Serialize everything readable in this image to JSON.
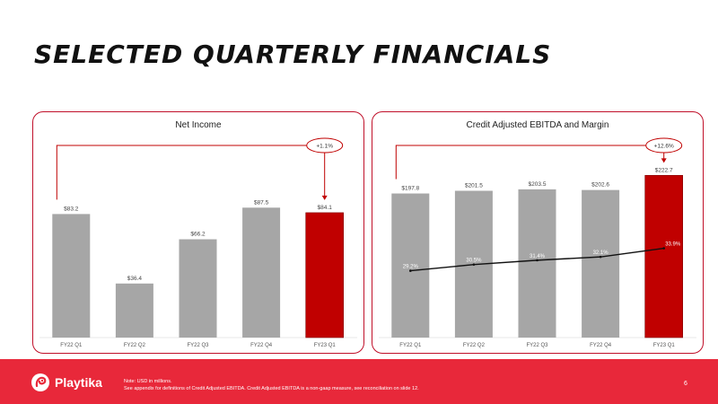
{
  "page": {
    "title": "SELECTED QUARTERLY FINANCIALS",
    "brand": "Playtika",
    "note_line1": "Note:  USD in millions.",
    "note_line2": "See appendix for definitions of Credit Adjusted EBITDA. Credit Adjusted EBITDA is a non-gaap measure, see reconciliation on slide 12.",
    "page_number": "6",
    "colors": {
      "accent": "#c00000",
      "bar": "#a6a6a6",
      "footer": "#e8283a"
    }
  },
  "chart_data": [
    {
      "type": "bar",
      "title": "Net Income",
      "categories": [
        "FY22 Q1",
        "FY22 Q2",
        "FY22 Q3",
        "FY22 Q4",
        "FY23 Q1"
      ],
      "values": [
        83.2,
        36.4,
        66.2,
        87.5,
        84.1
      ],
      "labels": [
        "$83.2",
        "$36.4",
        "$66.2",
        "$87.5",
        "$84.1"
      ],
      "highlight_index": 4,
      "change_label": "+1.1%",
      "ylim": [
        0,
        130
      ]
    },
    {
      "type": "bar",
      "title": "Credit Adjusted EBITDA and Margin",
      "categories": [
        "FY22 Q1",
        "FY22 Q2",
        "FY22 Q3",
        "FY22 Q4",
        "FY23 Q1"
      ],
      "values": [
        197.8,
        201.5,
        203.5,
        202.6,
        222.7
      ],
      "labels": [
        "$197.8",
        "$201.5",
        "$203.5",
        "$202.6",
        "$222.7"
      ],
      "highlight_index": 4,
      "change_label": "+12.6%",
      "margin_series": {
        "values": [
          29.2,
          30.5,
          31.4,
          32.1,
          33.9
        ],
        "labels": [
          "29.2%",
          "30.5%",
          "31.4%",
          "32.1%",
          "33.9%"
        ]
      },
      "ylim": [
        0,
        265
      ]
    }
  ]
}
